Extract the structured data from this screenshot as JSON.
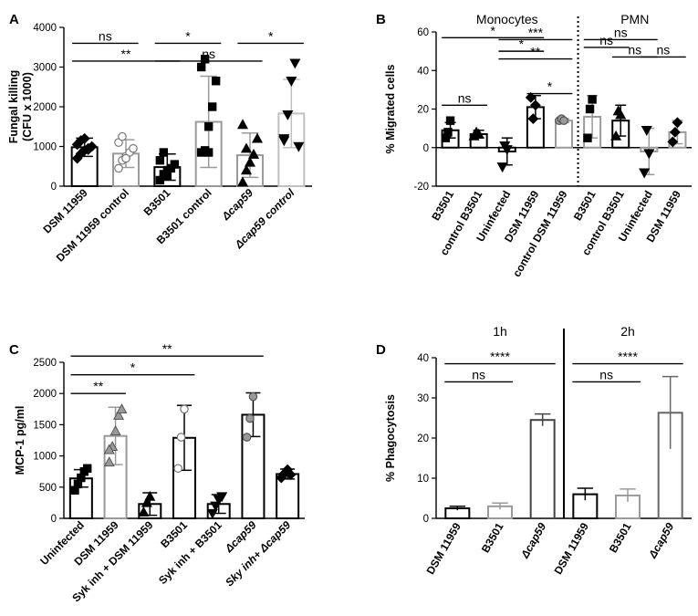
{
  "chart_data": [
    {
      "panel": "A",
      "type": "bar",
      "ylabel": "Fungal killing (CFU x 1000)",
      "ylim": [
        0,
        4000
      ],
      "yticks": [
        0,
        1000,
        2000,
        3000,
        4000
      ],
      "categories": [
        {
          "label": "DSM 11959",
          "italic": false
        },
        {
          "label": "DSM 11959 control",
          "italic": false
        },
        {
          "label": "B3501",
          "italic": false
        },
        {
          "label": "B3501 control",
          "italic": false
        },
        {
          "label": "Δcap59",
          "italic": true
        },
        {
          "label": "Δcap59 control",
          "italic": true
        }
      ],
      "bars": [
        {
          "mean": 980,
          "sd": 230,
          "color": "#000000",
          "fill": "#ffffff",
          "marker": "diamond",
          "points": [
            700,
            820,
            900,
            950,
            1000,
            1050,
            1150,
            1200,
            920
          ]
        },
        {
          "mean": 820,
          "sd": 350,
          "color": "#9a9a9a",
          "fill": "#ffffff",
          "marker": "circle",
          "points": [
            450,
            650,
            750,
            850,
            950,
            1100,
            1250,
            700
          ]
        },
        {
          "mean": 480,
          "sd": 330,
          "color": "#000000",
          "fill": "#ffffff",
          "marker": "square",
          "points": [
            150,
            300,
            400,
            450,
            550,
            650,
            850,
            250
          ]
        },
        {
          "mean": 1620,
          "sd": 1150,
          "color": "#9a9a9a",
          "fill": "#ffffff",
          "marker": "square-black",
          "points": [
            850,
            900,
            1500,
            2000,
            2650,
            3000,
            3200,
            850
          ]
        },
        {
          "mean": 780,
          "sd": 560,
          "color": "#9a9a9a",
          "fill": "#ffffff",
          "marker": "triangle",
          "points": [
            100,
            400,
            600,
            800,
            1200,
            1550,
            950
          ]
        },
        {
          "mean": 1830,
          "sd": 860,
          "color": "#c0c0c0",
          "fill": "#ffffff",
          "marker": "triangle-down",
          "points": [
            1150,
            1800,
            2650,
            3100,
            1000,
            1200
          ]
        }
      ],
      "brackets": [
        {
          "from": 0,
          "to": 1,
          "level": 1,
          "label": "ns"
        },
        {
          "from": 0,
          "to": 2,
          "level": 0,
          "label": "**"
        },
        {
          "from": 2,
          "to": 3,
          "level": 1,
          "label": "*"
        },
        {
          "from": 2,
          "to": 4,
          "level": 0,
          "label": "ns"
        },
        {
          "from": 4,
          "to": 5,
          "level": 1,
          "label": "*"
        }
      ]
    },
    {
      "panel": "B",
      "type": "bar",
      "ylabel": "% Migrated cells",
      "ylim": [
        -20,
        60
      ],
      "yticks": [
        -20,
        0,
        20,
        40,
        60
      ],
      "groups": [
        {
          "label": "Monocytes",
          "from": 0,
          "to": 4
        },
        {
          "label": "PMN",
          "from": 5,
          "to": 8
        }
      ],
      "categories": [
        {
          "label": "B3501",
          "italic": false
        },
        {
          "label": "control B3501",
          "italic": false
        },
        {
          "label": "Uninfected",
          "italic": false
        },
        {
          "label": "DSM 11959",
          "italic": false
        },
        {
          "label": "control DSM 11959",
          "italic": false
        },
        {
          "label": "B3501",
          "italic": false
        },
        {
          "label": "control B3501",
          "italic": false
        },
        {
          "label": "Uninfected",
          "italic": false
        },
        {
          "label": "DSM 11959",
          "italic": false
        }
      ],
      "bars": [
        {
          "mean": 9,
          "sd": 4,
          "color": "#000000",
          "fill": "#ffffff",
          "marker": "square",
          "points": [
            5,
            8,
            14
          ]
        },
        {
          "mean": 7,
          "sd": 2,
          "color": "#000000",
          "fill": "#ffffff",
          "marker": "triangle",
          "points": [
            6,
            8,
            7
          ]
        },
        {
          "mean": -2,
          "sd": 7,
          "color": "#000000",
          "fill": "#ffffff",
          "marker": "triangle-down",
          "points": [
            -10,
            1,
            -1
          ]
        },
        {
          "mean": 21,
          "sd": 6,
          "color": "#000000",
          "fill": "#ffffff",
          "marker": "diamond",
          "points": [
            26,
            15,
            22
          ]
        },
        {
          "mean": 14,
          "sd": 1,
          "color": "#9a9a9a",
          "fill": "#ffffff",
          "marker": "circle-gray",
          "points": [
            14,
            15,
            14
          ]
        },
        {
          "mean": 16,
          "sd": 11,
          "color": "#9a9a9a",
          "fill": "#ffffff",
          "marker": "square",
          "points": [
            5,
            20,
            25
          ]
        },
        {
          "mean": 14,
          "sd": 8,
          "color": "#000000",
          "fill": "#ffffff",
          "marker": "triangle",
          "points": [
            6,
            19,
            17
          ]
        },
        {
          "mean": -2,
          "sd": 12,
          "color": "#9a9a9a",
          "fill": "#ffffff",
          "marker": "triangle-down",
          "points": [
            -13,
            9,
            -3
          ]
        },
        {
          "mean": 8,
          "sd": 6,
          "color": "#9a9a9a",
          "fill": "#ffffff",
          "marker": "diamond",
          "points": [
            3,
            8,
            13
          ]
        }
      ],
      "brackets": [
        {
          "from": 0,
          "to": 3,
          "level": 2,
          "label": "*"
        },
        {
          "from": 0,
          "to": 1,
          "level": 0,
          "label": "ns"
        },
        {
          "from": 2,
          "to": 3,
          "level": 1,
          "label": "*"
        },
        {
          "from": 3,
          "to": 4,
          "level": 0,
          "label": "*"
        },
        {
          "from": 2,
          "to": 4,
          "level": 2,
          "label": "***"
        },
        {
          "from": 2,
          "to": 4,
          "level": 1,
          "label": "**"
        },
        {
          "from": 5,
          "to": 7,
          "level": 2,
          "label": "ns"
        },
        {
          "from": 6,
          "to": 7,
          "level": 1,
          "label": "ns"
        },
        {
          "from": 5,
          "to": 6,
          "level": 0,
          "label": "ns"
        },
        {
          "from": 7,
          "to": 8,
          "level": 1,
          "label": "ns"
        }
      ],
      "divider_after": 4
    },
    {
      "panel": "C",
      "type": "bar",
      "ylabel": "MCP-1 pg/ml",
      "ylim": [
        0,
        2500
      ],
      "yticks": [
        0,
        500,
        1000,
        1500,
        2000,
        2500
      ],
      "categories": [
        {
          "label": "Uninfected",
          "italic": false
        },
        {
          "label": "DSM 11959",
          "italic": false
        },
        {
          "label": "Syk inh + DSM 11959",
          "italic": false
        },
        {
          "label": "B3501",
          "italic": false
        },
        {
          "label": "Syk inh + B3501",
          "italic": false
        },
        {
          "label": "Δcap59",
          "italic": true
        },
        {
          "label": "Sky inh+ Δcap59",
          "italic": true
        }
      ],
      "bars": [
        {
          "mean": 640,
          "sd": 140,
          "color": "#000000",
          "fill": "#ffffff",
          "marker": "square",
          "points": [
            450,
            550,
            650,
            750,
            800
          ]
        },
        {
          "mean": 1320,
          "sd": 460,
          "color": "#9a9a9a",
          "fill": "#ffffff",
          "marker": "triangle-gray",
          "points": [
            900,
            1150,
            1400,
            1650,
            1750,
            1100
          ]
        },
        {
          "mean": 230,
          "sd": 180,
          "color": "#000000",
          "fill": "#ffffff",
          "marker": "triangle",
          "points": [
            100,
            250,
            350
          ]
        },
        {
          "mean": 1290,
          "sd": 520,
          "color": "#000000",
          "fill": "#ffffff",
          "marker": "circle",
          "points": [
            800,
            1300,
            1750
          ]
        },
        {
          "mean": 230,
          "sd": 150,
          "color": "#000000",
          "fill": "#ffffff",
          "marker": "triangle-down",
          "points": [
            80,
            200,
            300,
            350
          ]
        },
        {
          "mean": 1660,
          "sd": 350,
          "color": "#000000",
          "fill": "#ffffff",
          "marker": "circle-gray",
          "points": [
            1300,
            1600,
            1950
          ]
        },
        {
          "mean": 710,
          "sd": 80,
          "color": "#000000",
          "fill": "#ffffff",
          "marker": "diamond",
          "points": [
            650,
            720,
            780,
            700
          ]
        }
      ],
      "brackets": [
        {
          "from": 0,
          "to": 1,
          "level": 0,
          "label": "**"
        },
        {
          "from": 0,
          "to": 3,
          "level": 1,
          "label": "*"
        },
        {
          "from": 0,
          "to": 5,
          "level": 2,
          "label": "**"
        }
      ]
    },
    {
      "panel": "D",
      "type": "bar",
      "ylabel": "% Phagocytosis",
      "ylim": [
        0,
        40
      ],
      "yticks": [
        0,
        10,
        20,
        30,
        40
      ],
      "groups": [
        {
          "label": "1h",
          "from": 0,
          "to": 2
        },
        {
          "label": "2h",
          "from": 3,
          "to": 5
        }
      ],
      "categories": [
        {
          "label": "DSM 11959",
          "italic": false
        },
        {
          "label": "B3501",
          "italic": false
        },
        {
          "label": "Δcap59",
          "italic": true
        },
        {
          "label": "DSM 11959",
          "italic": false
        },
        {
          "label": "B3501",
          "italic": false
        },
        {
          "label": "Δcap59",
          "italic": true
        }
      ],
      "bars": [
        {
          "mean": 2.5,
          "sd": 0.5,
          "color": "#000000",
          "fill": "#ffffff"
        },
        {
          "mean": 3.0,
          "sd": 0.8,
          "color": "#9a9a9a",
          "fill": "#ffffff"
        },
        {
          "mean": 24.5,
          "sd": 1.5,
          "color": "#444444",
          "fill": "#ffffff"
        },
        {
          "mean": 6.0,
          "sd": 1.5,
          "color": "#000000",
          "fill": "#ffffff"
        },
        {
          "mean": 5.7,
          "sd": 1.6,
          "color": "#9a9a9a",
          "fill": "#ffffff"
        },
        {
          "mean": 26.3,
          "sd": 9.0,
          "color": "#666666",
          "fill": "#ffffff"
        }
      ],
      "brackets": [
        {
          "from": 0,
          "to": 1,
          "level": 0,
          "label": "ns"
        },
        {
          "from": 0,
          "to": 2,
          "level": 1,
          "label": "****"
        },
        {
          "from": 3,
          "to": 4,
          "level": 0,
          "label": "ns"
        },
        {
          "from": 3,
          "to": 5,
          "level": 1,
          "label": "****"
        }
      ],
      "divider_after": 2
    }
  ]
}
